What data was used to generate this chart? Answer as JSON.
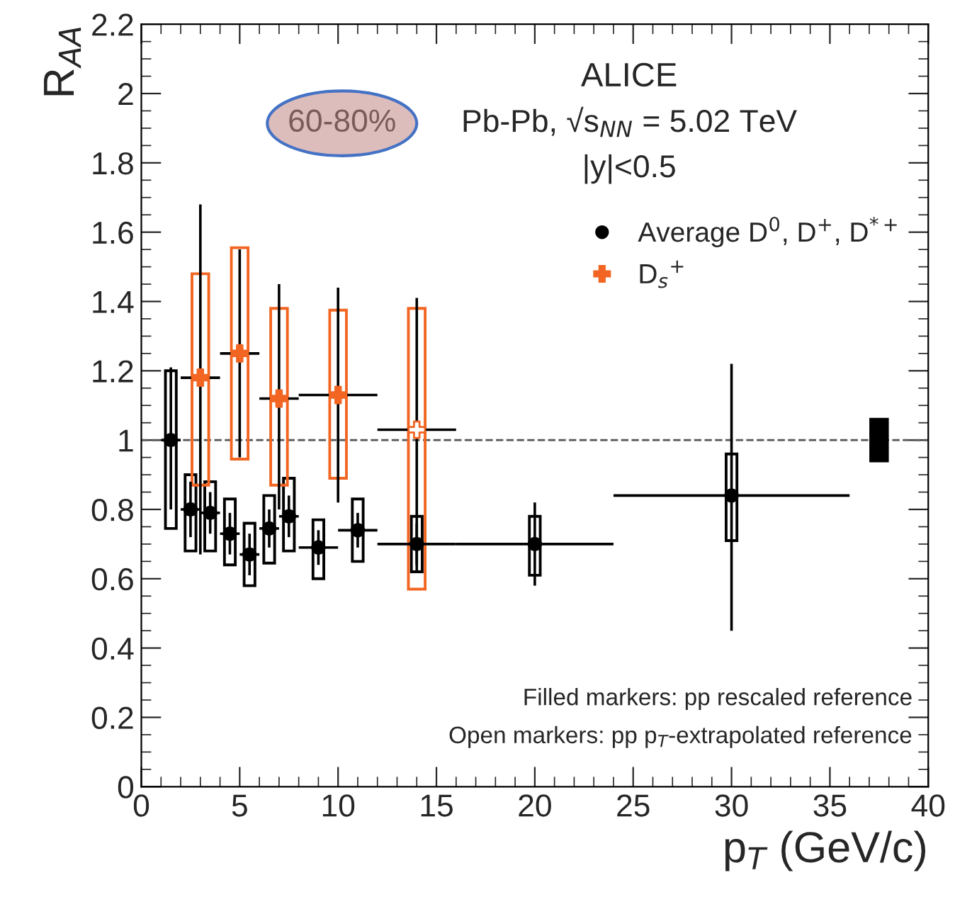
{
  "chart_data": {
    "type": "scatter",
    "xlabel": "p$_{T}$ (GeV/c)",
    "ylabel": "R$_{AA}$",
    "xlim": [
      0,
      40
    ],
    "xticks": [
      0,
      5,
      10,
      15,
      20,
      25,
      30,
      35,
      40
    ],
    "ylim": [
      0,
      2.2
    ],
    "yticks": [
      0,
      0.2,
      0.4,
      0.6,
      0.8,
      1,
      1.2,
      1.4,
      1.6,
      1.8,
      2,
      2.2
    ],
    "grid": false,
    "legend": "top right",
    "annotations": [
      "ALICE",
      "60-80%",
      "Pb-Pb, √s$_{NN}$ = 5.02 TeV",
      "|y|<0.5",
      "Filled markers: pp rescaled reference",
      "Open markers: pp p$_{T}$-extrapolated reference"
    ],
    "ref_lines": [
      {
        "axis": "y",
        "value": 1,
        "line_style": "dashed",
        "color": "#555555"
      }
    ],
    "series": [
      {
        "name": "Average D$^{0}$, D$^{+}$, D$^{*+}$",
        "marker": "circle",
        "color": "#000000",
        "x": [
          1.5,
          2.5,
          3.5,
          4.5,
          5.5,
          6.5,
          7.5,
          9,
          11,
          14,
          20,
          30
        ],
        "values": [
          1.0,
          0.8,
          0.79,
          0.73,
          0.67,
          0.745,
          0.78,
          0.69,
          0.74,
          0.7,
          0.7,
          0.84
        ],
        "errors": [
          [
            0.8,
            1.21
          ],
          [
            0.72,
            0.88
          ],
          [
            0.73,
            0.85
          ],
          [
            0.67,
            0.79
          ],
          [
            0.61,
            0.73
          ],
          [
            0.69,
            0.8
          ],
          [
            0.72,
            0.84
          ],
          [
            0.64,
            0.74
          ],
          [
            0.69,
            0.79
          ],
          [
            0.64,
            0.76
          ],
          [
            0.58,
            0.82
          ],
          [
            0.45,
            1.22
          ]
        ],
        "xerrors": [
          [
            1,
            2
          ],
          [
            2,
            3
          ],
          [
            3,
            4
          ],
          [
            4,
            5
          ],
          [
            5,
            6
          ],
          [
            6,
            7
          ],
          [
            7,
            8
          ],
          [
            8,
            10
          ],
          [
            10,
            12
          ],
          [
            12,
            16
          ],
          [
            16,
            24
          ],
          [
            24,
            36
          ]
        ]
      },
      {
        "type": "bar",
        "color": "#000000",
        "x": [
          1.5,
          2.5,
          3.5,
          4.5,
          5.5,
          6.5,
          7.5,
          9,
          11,
          14,
          20,
          30
        ],
        "base": [
          0.745,
          0.68,
          0.68,
          0.64,
          0.58,
          0.645,
          0.68,
          0.6,
          0.65,
          0.62,
          0.61,
          0.71
        ],
        "values": [
          0.455,
          0.22,
          0.2,
          0.19,
          0.18,
          0.195,
          0.21,
          0.17,
          0.18,
          0.16,
          0.17,
          0.25
        ]
      },
      {
        "name": "D$_{s}$$^{+}$",
        "marker": "cross",
        "color": "#f26522",
        "colors": [
          "#f26522",
          "#f26522",
          "#f26522",
          "#f26522",
          "#ffffff"
        ],
        "x": [
          3,
          5,
          7,
          10,
          14
        ],
        "values": [
          1.18,
          1.25,
          1.12,
          1.13,
          1.03
        ],
        "errors": [
          [
            0.67,
            1.68
          ],
          [
            0.95,
            1.55
          ],
          [
            0.8,
            1.45
          ],
          [
            0.82,
            1.44
          ],
          [
            0.62,
            1.41
          ]
        ],
        "xerrors": [
          [
            2,
            4
          ],
          [
            4,
            6
          ],
          [
            6,
            8
          ],
          [
            8,
            12
          ],
          [
            12,
            16
          ]
        ]
      },
      {
        "type": "bar",
        "color": "#f26522",
        "x": [
          3,
          5,
          7,
          10,
          14
        ],
        "base": [
          0.87,
          0.945,
          0.87,
          0.89,
          0.57
        ],
        "values": [
          0.61,
          0.61,
          0.51,
          0.485,
          0.81
        ]
      },
      {
        "type": "bar",
        "color": "#000000",
        "colors": [
          "#000000"
        ],
        "x": [
          37.5
        ],
        "base": [
          0.94
        ],
        "values": [
          0.12
        ]
      }
    ]
  }
}
